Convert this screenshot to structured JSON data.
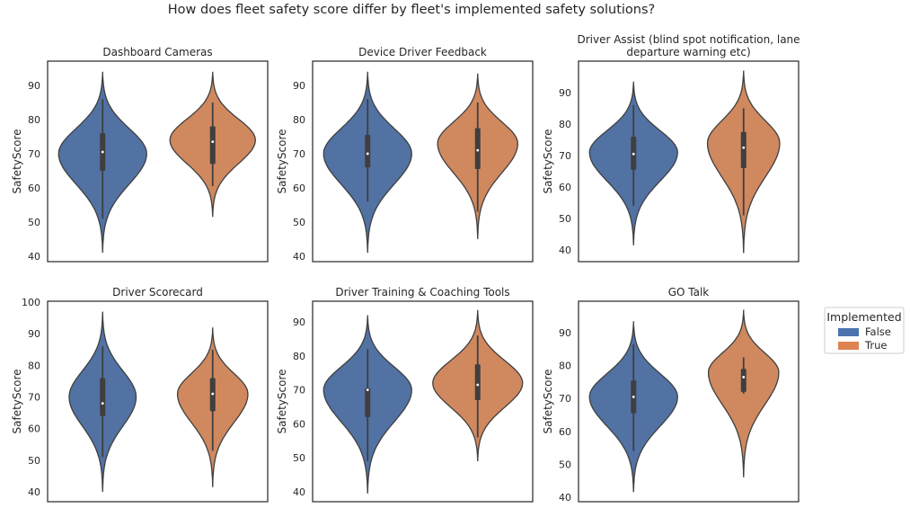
{
  "chart_data": {
    "type": "violin",
    "title": "How does fleet safety score differ by fleet's implemented safety solutions?",
    "legend": {
      "title": "Implemented",
      "placement": "right",
      "entries": [
        {
          "label": "False",
          "color": "#4c72b0",
          "fill": "#5172a3"
        },
        {
          "label": "True",
          "color": "#dd8452",
          "fill": "#d0885f"
        }
      ]
    },
    "panels": [
      {
        "title": "Dashboard Cameras",
        "ylabel": "SafetyScore",
        "ylim": [
          38.4,
          97.1
        ],
        "yticks": [
          40,
          50,
          60,
          70,
          80,
          90
        ],
        "violins": [
          {
            "group": "False",
            "min": 41,
            "max": 94,
            "peak": 70,
            "relative_width": 1.0,
            "whisker_low": 51,
            "q1": 65,
            "median": 70.5,
            "q3": 76,
            "whisker_high": 86
          },
          {
            "group": "True",
            "min": 51.5,
            "max": 94,
            "peak": 74,
            "relative_width": 0.97,
            "whisker_low": 60.5,
            "q1": 67,
            "median": 73.5,
            "q3": 78,
            "whisker_high": 85
          }
        ]
      },
      {
        "title": "Device Driver Feedback",
        "ylabel": "SafetyScore",
        "ylim": [
          38.4,
          97.1
        ],
        "yticks": [
          40,
          50,
          60,
          70,
          80,
          90
        ],
        "violins": [
          {
            "group": "False",
            "min": 41,
            "max": 94,
            "peak": 70,
            "relative_width": 1.0,
            "whisker_low": 56,
            "q1": 66,
            "median": 70,
            "q3": 75.5,
            "whisker_high": 86
          },
          {
            "group": "True",
            "min": 45,
            "max": 93.5,
            "peak": 73,
            "relative_width": 0.91,
            "whisker_low": 53,
            "q1": 65.5,
            "median": 71,
            "q3": 77.5,
            "whisker_high": 85
          }
        ]
      },
      {
        "title": "Driver Assist (blind spot notification, lane departure warning etc)",
        "ylabel": "SafetyScore",
        "ylim": [
          36.3,
          100
        ],
        "yticks": [
          40,
          50,
          60,
          70,
          80,
          90
        ],
        "violins": [
          {
            "group": "False",
            "min": 41.5,
            "max": 93.5,
            "peak": 71,
            "relative_width": 1.0,
            "whisker_low": 54,
            "q1": 65.5,
            "median": 70.5,
            "q3": 76,
            "whisker_high": 86
          },
          {
            "group": "True",
            "min": 39,
            "max": 97,
            "peak": 74,
            "relative_width": 0.82,
            "whisker_low": 51,
            "q1": 66,
            "median": 72.5,
            "q3": 77.5,
            "whisker_high": 85
          }
        ]
      },
      {
        "title": "Driver Scorecard",
        "ylabel": "SafetyScore",
        "ylim": [
          36.9,
          100.3
        ],
        "yticks": [
          40,
          50,
          60,
          70,
          80,
          90,
          100
        ],
        "violins": [
          {
            "group": "False",
            "min": 40,
            "max": 97,
            "peak": 70,
            "relative_width": 0.76,
            "whisker_low": 51,
            "q1": 64,
            "median": 68,
            "q3": 76,
            "whisker_high": 86
          },
          {
            "group": "True",
            "min": 41.5,
            "max": 92,
            "peak": 71,
            "relative_width": 0.8,
            "whisker_low": 53,
            "q1": 65.5,
            "median": 71,
            "q3": 76,
            "whisker_high": 85
          }
        ]
      },
      {
        "title": "Driver Training & Coaching Tools",
        "ylabel": "SafetyScore",
        "ylim": [
          37.1,
          96.1
        ],
        "yticks": [
          40,
          50,
          60,
          70,
          80,
          90
        ],
        "violins": [
          {
            "group": "False",
            "min": 39.5,
            "max": 92,
            "peak": 70,
            "relative_width": 1.0,
            "whisker_low": 49,
            "q1": 62,
            "median": 70,
            "q3": 70.5,
            "whisker_high": 82
          },
          {
            "group": "True",
            "min": 49,
            "max": 93.5,
            "peak": 72,
            "relative_width": 1.02,
            "whisker_low": 56,
            "q1": 67,
            "median": 71.5,
            "q3": 77.5,
            "whisker_high": 86
          }
        ]
      },
      {
        "title": "GO Talk",
        "ylabel": "SafetyScore",
        "ylim": [
          38.6,
          99.6
        ],
        "yticks": [
          40,
          50,
          60,
          70,
          80,
          90
        ],
        "violins": [
          {
            "group": "False",
            "min": 41.5,
            "max": 93.5,
            "peak": 70.5,
            "relative_width": 1.0,
            "whisker_low": 54,
            "q1": 65.5,
            "median": 70.5,
            "q3": 75.5,
            "whisker_high": 86.5
          },
          {
            "group": "True",
            "min": 46,
            "max": 97,
            "peak": 78,
            "relative_width": 0.8,
            "whisker_low": 71.5,
            "q1": 72,
            "median": 76.5,
            "q3": 79,
            "whisker_high": 82.5
          }
        ]
      }
    ]
  }
}
